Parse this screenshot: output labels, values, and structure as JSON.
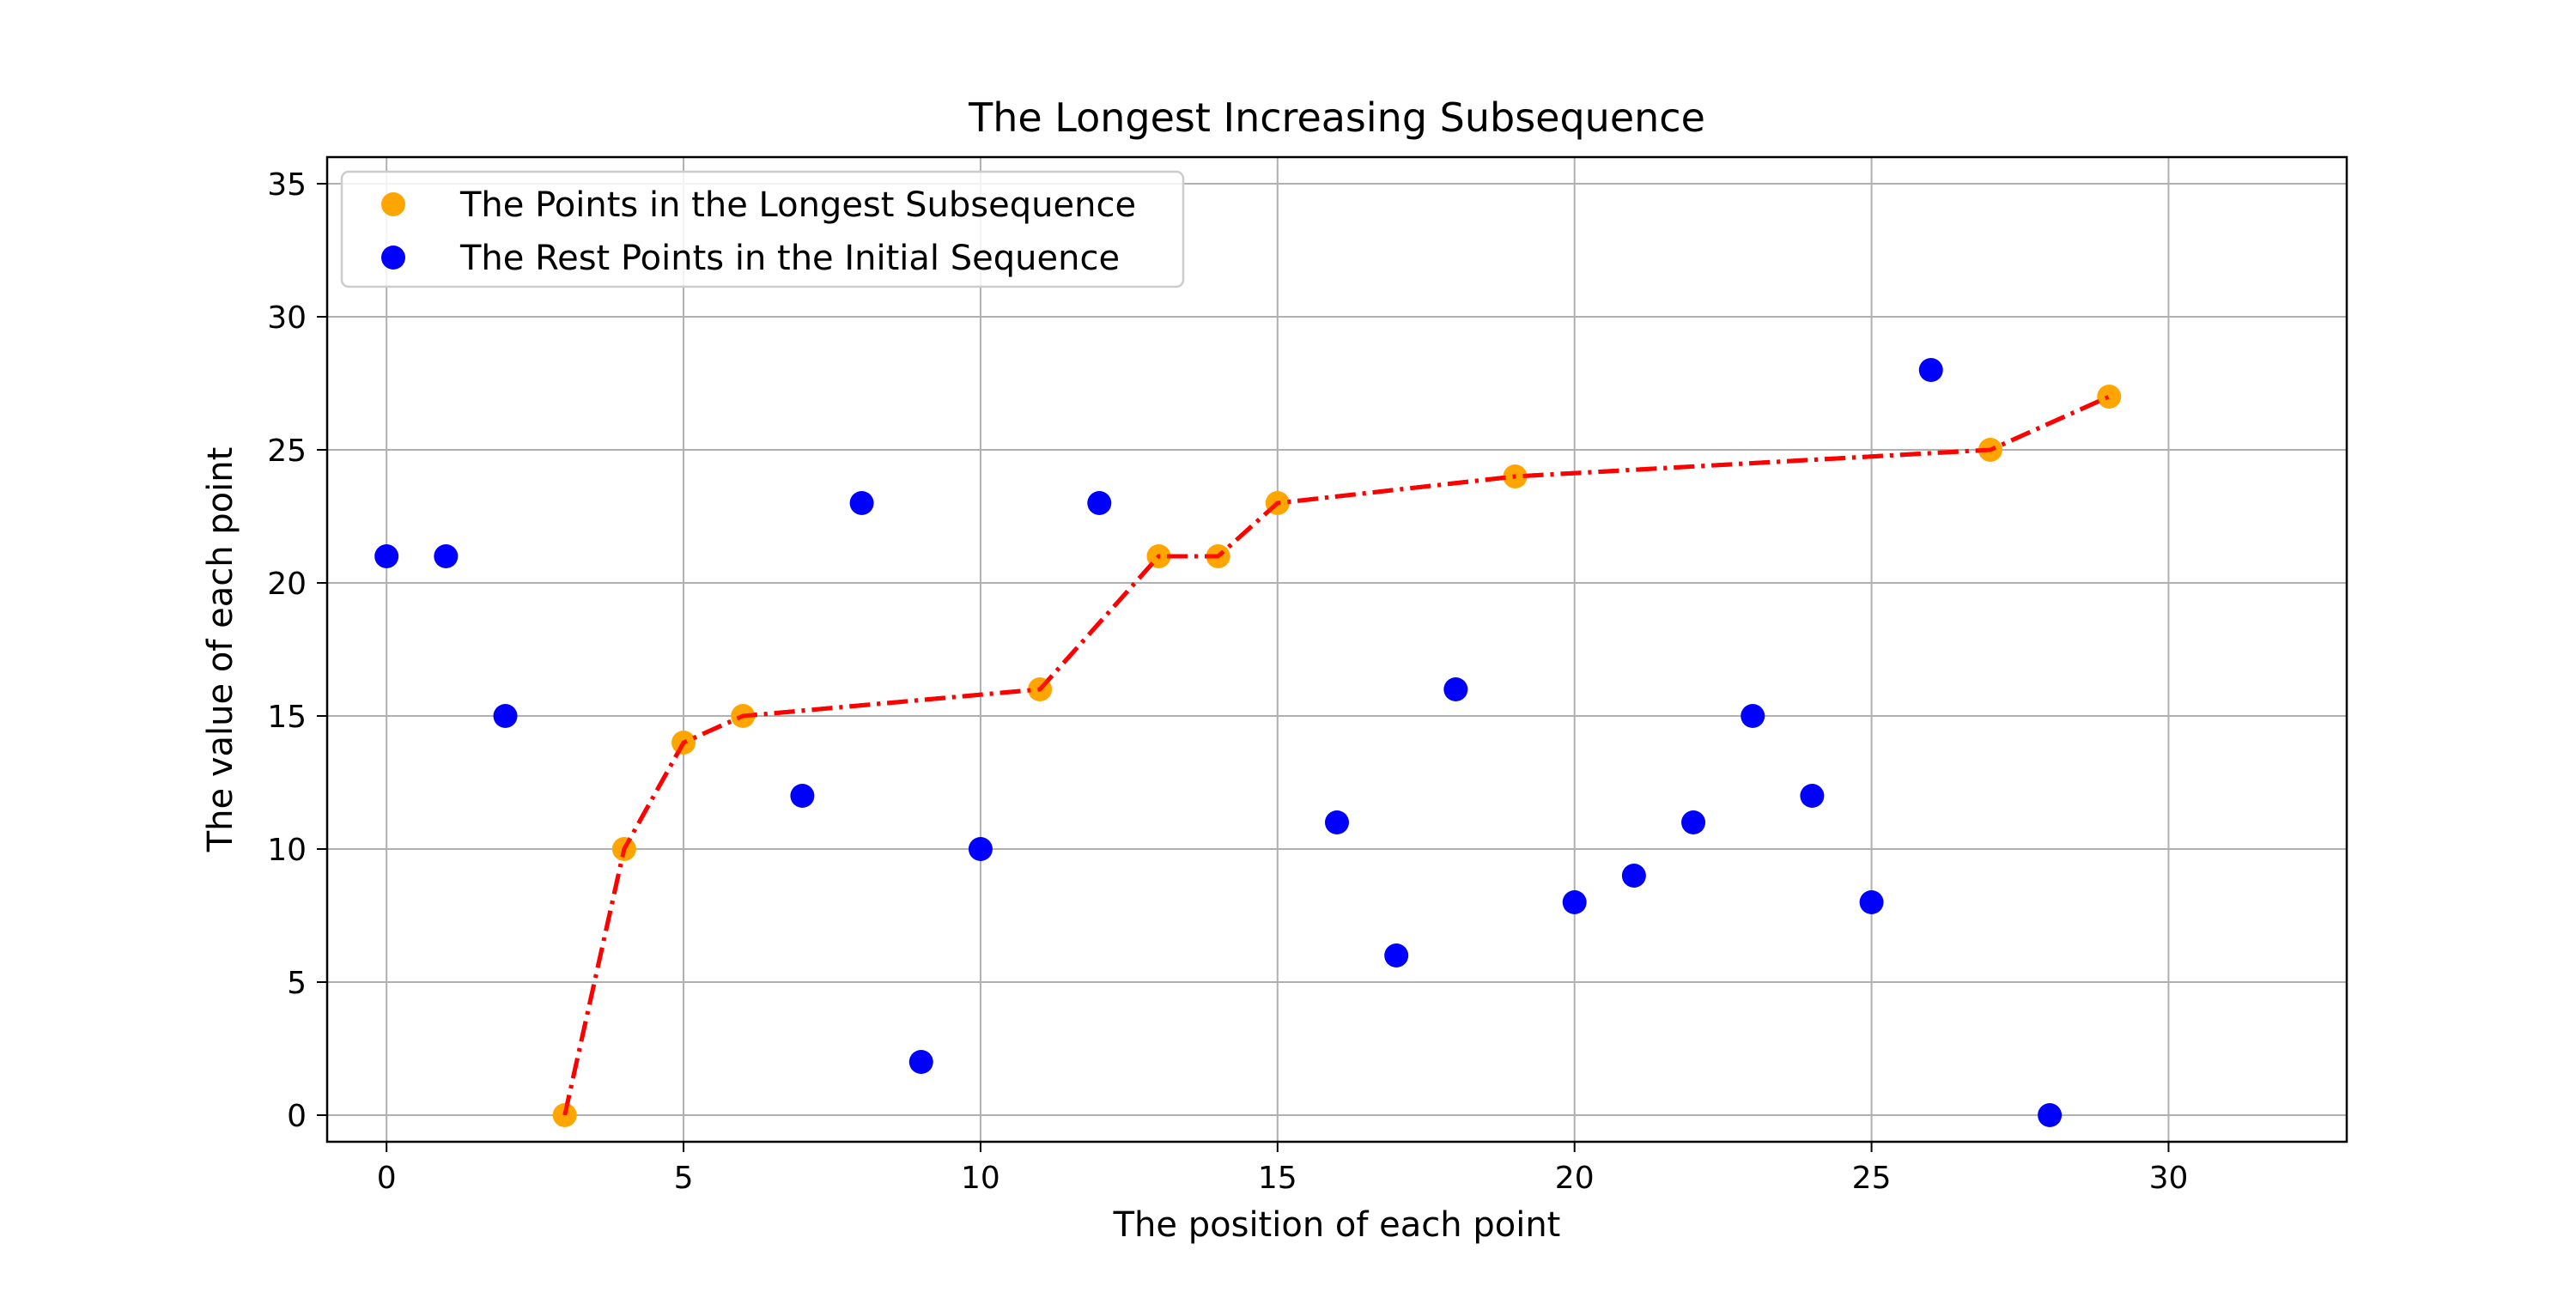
{
  "chart_data": {
    "type": "scatter",
    "title": "The Longest Increasing Subsequence",
    "xlabel": "The position of each point",
    "ylabel": "The value of each point",
    "xlim": [
      -1,
      33
    ],
    "ylim": [
      -1,
      36
    ],
    "xticks": [
      0,
      5,
      10,
      15,
      20,
      25,
      30
    ],
    "yticks": [
      0,
      5,
      10,
      15,
      20,
      25,
      30,
      35
    ],
    "grid": true,
    "legend_position": "top-left",
    "series": [
      {
        "name": "The Points in the Longest Subsequence",
        "color": "#ffa500",
        "x": [
          3,
          4,
          5,
          6,
          11,
          13,
          14,
          15,
          19,
          27,
          29
        ],
        "y": [
          0,
          10,
          14,
          15,
          16,
          21,
          21,
          23,
          24,
          25,
          27
        ]
      },
      {
        "name": "The Rest Points in the Initial Sequence",
        "color": "#0000ff",
        "x": [
          0,
          1,
          2,
          7,
          8,
          9,
          10,
          12,
          16,
          17,
          18,
          20,
          21,
          22,
          23,
          24,
          25,
          26,
          28
        ],
        "y": [
          21,
          21,
          15,
          12,
          23,
          2,
          10,
          23,
          11,
          6,
          16,
          8,
          9,
          11,
          15,
          12,
          8,
          28,
          0
        ]
      }
    ],
    "connecting_line": {
      "color": "#ff0000",
      "style": "dash-dot",
      "x": [
        3,
        4,
        5,
        6,
        11,
        13,
        14,
        15,
        19,
        27,
        29
      ],
      "y": [
        0,
        10,
        14,
        15,
        16,
        21,
        21,
        23,
        24,
        25,
        27
      ]
    }
  }
}
